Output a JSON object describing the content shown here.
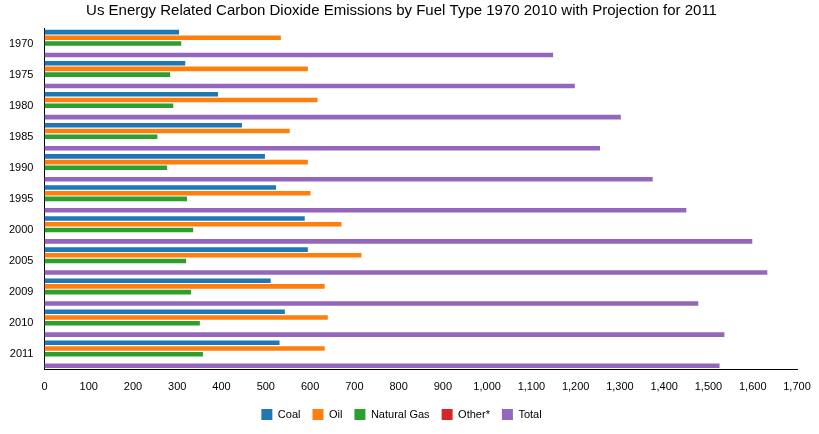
{
  "chart_data": {
    "type": "bar",
    "orientation": "horizontal",
    "title": "Us Energy Related Carbon Dioxide Emissions by Fuel Type 1970 2010 with Projection for 2011",
    "categories": [
      "1970",
      "1975",
      "1980",
      "1985",
      "1990",
      "1995",
      "2000",
      "2005",
      "2009",
      "2010",
      "2011"
    ],
    "series": [
      {
        "name": "Coal",
        "color": "#1f77b4",
        "values": [
          304,
          318,
          392,
          446,
          498,
          523,
          588,
          595,
          511,
          543,
          531
        ]
      },
      {
        "name": "Oil",
        "color": "#ff7f0e",
        "values": [
          534,
          595,
          617,
          554,
          595,
          601,
          671,
          716,
          633,
          640,
          633
        ]
      },
      {
        "name": "Natural Gas",
        "color": "#2ca02c",
        "values": [
          309,
          284,
          291,
          255,
          277,
          322,
          336,
          320,
          331,
          351,
          358
        ]
      },
      {
        "name": "Other*",
        "color": "#d62728",
        "values": [
          null,
          null,
          null,
          null,
          null,
          null,
          null,
          null,
          null,
          null,
          null
        ]
      },
      {
        "name": "Total",
        "color": "#9467bd",
        "values": [
          1149,
          1198,
          1302,
          1255,
          1374,
          1450,
          1599,
          1633,
          1477,
          1536,
          1525
        ]
      }
    ],
    "xlim": [
      0,
      1700
    ],
    "xticks": [
      0,
      100,
      200,
      300,
      400,
      500,
      600,
      700,
      800,
      900,
      {
        "value": 1000,
        "label": "1,000"
      },
      {
        "value": 1100,
        "label": "1,100"
      },
      {
        "value": 1200,
        "label": "1,200"
      },
      {
        "value": 1300,
        "label": "1,300"
      },
      {
        "value": 1400,
        "label": "1,400"
      },
      {
        "value": 1500,
        "label": "1,500"
      },
      {
        "value": 1600,
        "label": "1,600"
      },
      {
        "value": 1700,
        "label": "1,700"
      }
    ],
    "grid": false,
    "legend": "bottom"
  }
}
